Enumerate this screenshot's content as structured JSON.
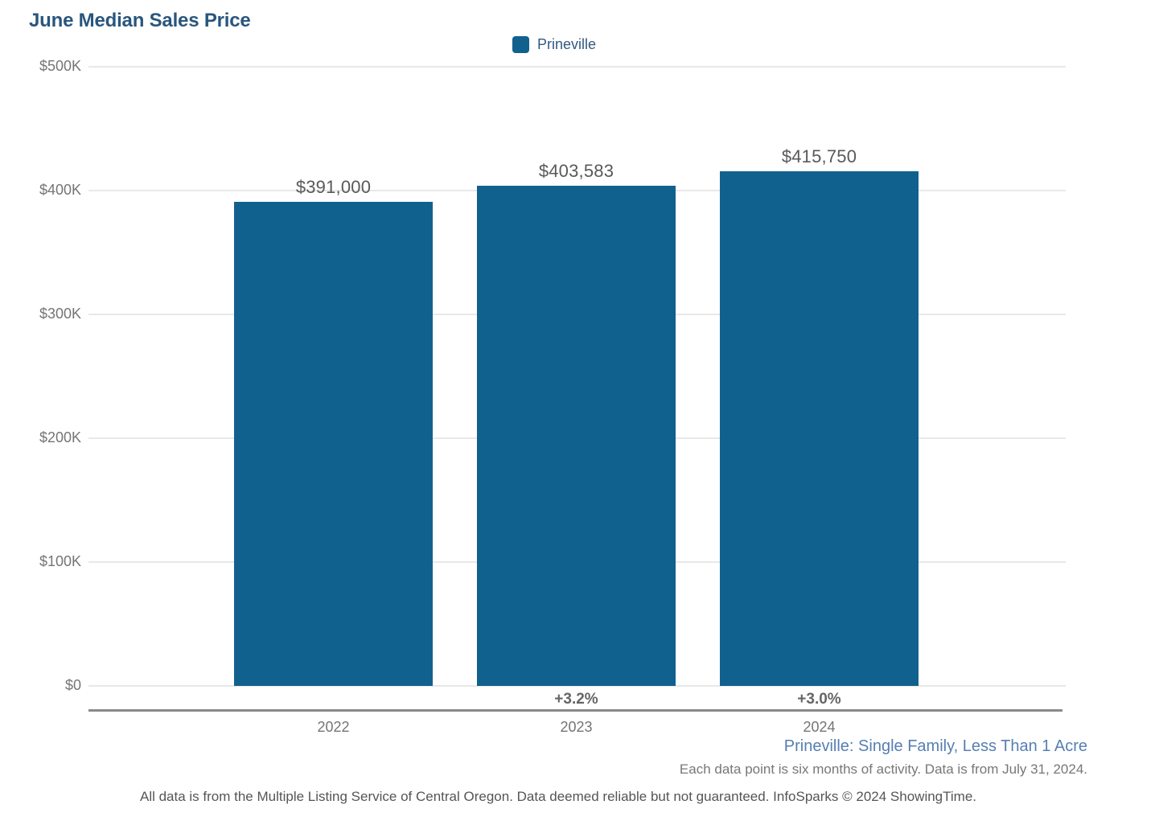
{
  "title": "June Median Sales Price",
  "legend": {
    "label": "Prineville",
    "swatch_color": "#11618F"
  },
  "chart_data": {
    "type": "bar",
    "title": "June Median Sales Price",
    "series_name": "Prineville",
    "categories": [
      "2022",
      "2023",
      "2024"
    ],
    "values": [
      391000,
      403583,
      415750
    ],
    "value_labels": [
      "$391,000",
      "$403,583",
      "$415,750"
    ],
    "pct_change_labels": [
      "",
      "+3.2%",
      "+3.0%"
    ],
    "y_ticks": [
      {
        "label": "$500K",
        "value": 500000
      },
      {
        "label": "$400K",
        "value": 400000
      },
      {
        "label": "$300K",
        "value": 300000
      },
      {
        "label": "$200K",
        "value": 200000
      },
      {
        "label": "$100K",
        "value": 100000
      },
      {
        "label": "$0",
        "value": 0
      }
    ],
    "ylim": [
      0,
      500000
    ],
    "xlabel": "",
    "ylabel": "",
    "grid": "horizontal",
    "legend_position": "top",
    "bar_color": "#11618F"
  },
  "footer": {
    "series_caption": "Prineville: Single Family, Less Than 1 Acre",
    "data_note": "Each data point is six months of activity. Data is from July 31, 2024.",
    "disclaimer": "All data is from the Multiple Listing Service of Central Oregon. Data deemed reliable but not guaranteed. InfoSparks © 2024 ShowingTime."
  },
  "colors": {
    "title": "#29567E",
    "bar": "#11618F",
    "gridline": "#E8E8E8",
    "axis_line": "#8A8A8A",
    "tick_text": "#757575",
    "value_text": "#58595B",
    "pct_text": "#666666",
    "caption_blue": "#567FB2"
  }
}
